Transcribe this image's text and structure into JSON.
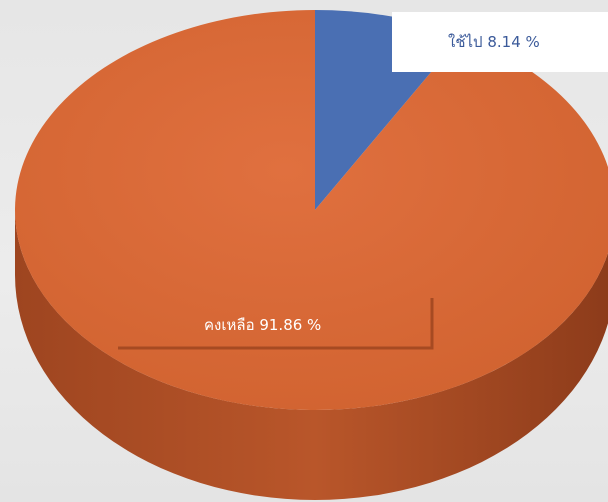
{
  "chart_data": {
    "type": "pie",
    "style": "3d",
    "slices": [
      {
        "label": "ใช้ไป 8.14 %",
        "value": 8.14,
        "color": "#4a6fb3"
      },
      {
        "label": "คงเหลือ 91.86  %",
        "value": 91.86,
        "color": "#d86a3d"
      }
    ]
  }
}
